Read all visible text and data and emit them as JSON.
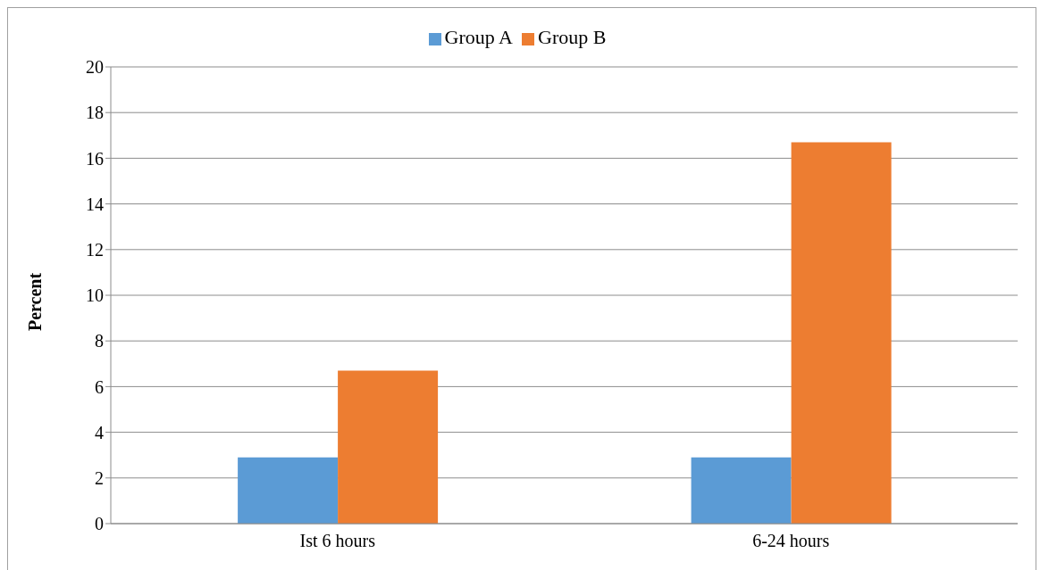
{
  "chart_data": {
    "type": "bar",
    "ylabel": "Percent",
    "categories": [
      "Ist 6 hours",
      "6-24 hours"
    ],
    "series": [
      {
        "name": "Group A",
        "color": "#5b9bd5",
        "values": [
          2.9,
          2.9
        ]
      },
      {
        "name": "Group B",
        "color": "#ed7d31",
        "values": [
          6.7,
          16.7
        ]
      }
    ],
    "ylim": [
      0,
      20
    ],
    "yticks": [
      0,
      2,
      4,
      6,
      8,
      10,
      12,
      14,
      16,
      18,
      20
    ],
    "grid": "y",
    "legend": "top"
  }
}
